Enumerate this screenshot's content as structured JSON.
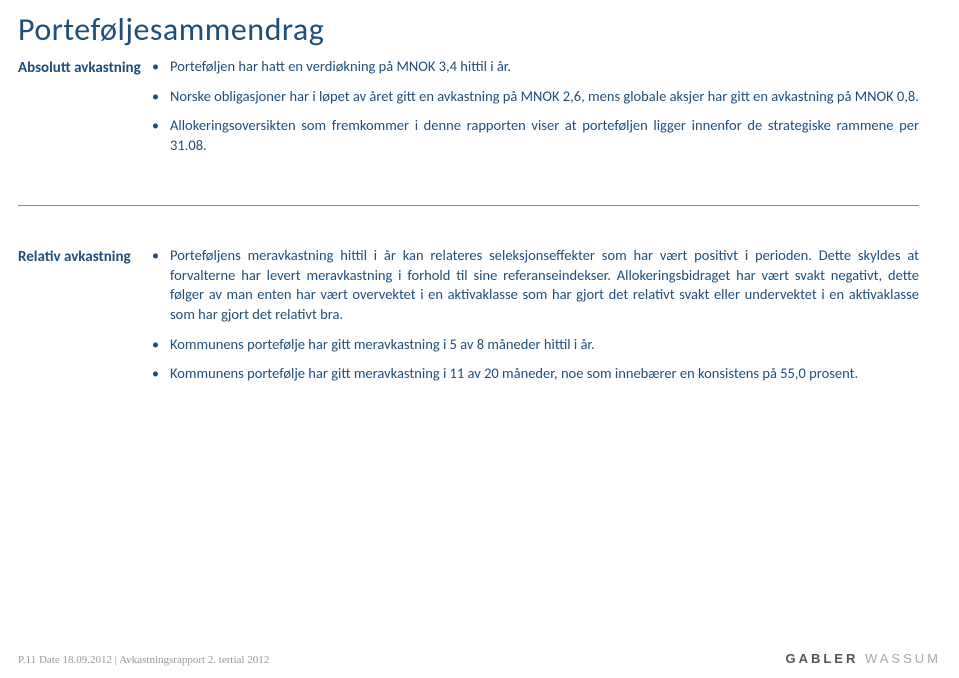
{
  "title": "Porteføljesammendrag",
  "sections": {
    "absolutt": {
      "label": "Absolutt avkastning",
      "bullets": [
        "Porteføljen har hatt en verdiøkning på MNOK 3,4 hittil i år.",
        "Norske obligasjoner har i løpet av året gitt en avkastning på MNOK 2,6, mens globale aksjer har gitt en avkastning på MNOK 0,8.",
        "Allokeringsoversikten som fremkommer i denne rapporten viser at porteføljen ligger innenfor de strategiske rammene per 31.08."
      ]
    },
    "relativ": {
      "label": "Relativ avkastning",
      "bullets": [
        "Porteføljens meravkastning hittil i år kan relateres seleksjonseffekter som har vært positivt i perioden. Dette skyldes at forvalterne har levert meravkastning i forhold til sine referanseindekser. Allokeringsbidraget har vært svakt negativt, dette følger av man enten har vært overvektet i en aktivaklasse som har gjort det relativt svakt eller undervektet i en aktivaklasse som har gjort det relativt bra.",
        "Kommunens portefølje har gitt meravkastning i 5 av 8 måneder hittil i år.",
        "Kommunens portefølje har gitt meravkastning i 11 av 20 måneder, noe som innebærer en konsistens på 55,0 prosent."
      ]
    }
  },
  "footer": {
    "left": "P.11  Date 18.09.2012 | Avkastningsrapport 2. tertial 2012",
    "brand_bold": "GABLER",
    "brand_light": " WASSUM"
  }
}
